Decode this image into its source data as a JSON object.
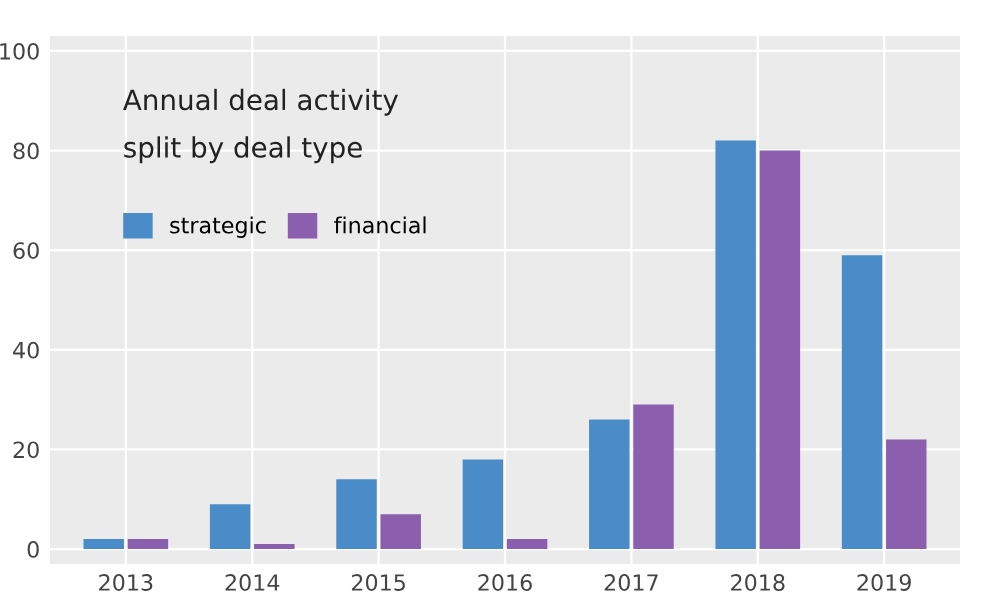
{
  "chart_data": {
    "type": "bar",
    "title": "Annual deal activity",
    "subtitle": "split by deal type",
    "categories": [
      "2013",
      "2014",
      "2015",
      "2016",
      "2017",
      "2018",
      "2019"
    ],
    "series": [
      {
        "name": "strategic",
        "color": "#4a8cc8",
        "values": [
          2,
          9,
          14,
          18,
          26,
          82,
          59
        ]
      },
      {
        "name": "financial",
        "color": "#8b5fae",
        "values": [
          2,
          1,
          7,
          2,
          29,
          80,
          22
        ]
      }
    ],
    "ylim": [
      -3,
      103
    ],
    "yticks": [
      0,
      20,
      40,
      60,
      80,
      100
    ],
    "grid": true,
    "legend": "top left"
  }
}
